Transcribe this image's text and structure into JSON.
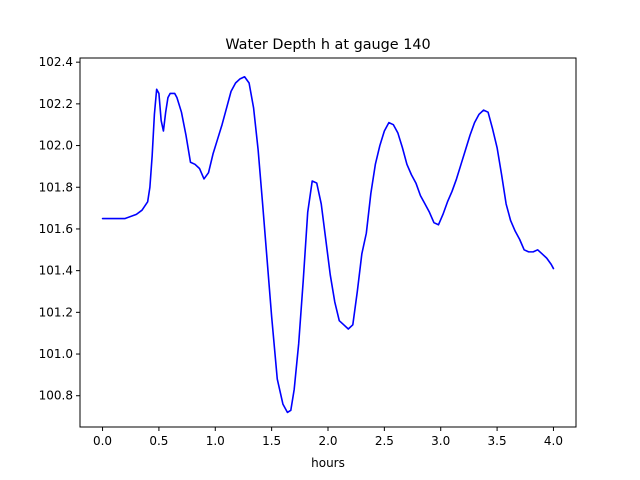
{
  "chart_data": {
    "type": "line",
    "title": "Water Depth h at gauge 140",
    "xlabel": "hours",
    "ylabel": "",
    "xlim": [
      -0.2,
      4.2
    ],
    "ylim": [
      100.65,
      102.42
    ],
    "xticks": [
      0.0,
      0.5,
      1.0,
      1.5,
      2.0,
      2.5,
      3.0,
      3.5,
      4.0
    ],
    "xtick_labels": [
      "0.0",
      "0.5",
      "1.0",
      "1.5",
      "2.0",
      "2.5",
      "3.0",
      "3.5",
      "4.0"
    ],
    "yticks": [
      100.8,
      101.0,
      101.2,
      101.4,
      101.6,
      101.8,
      102.0,
      102.2,
      102.4
    ],
    "ytick_labels": [
      "100.8",
      "101.0",
      "101.2",
      "101.4",
      "101.6",
      "101.8",
      "102.0",
      "102.2",
      "102.4"
    ],
    "grid": false,
    "series": [
      {
        "color": "#0000ff",
        "x": [
          0.0,
          0.1,
          0.2,
          0.3,
          0.35,
          0.4,
          0.42,
          0.44,
          0.46,
          0.48,
          0.5,
          0.52,
          0.54,
          0.56,
          0.58,
          0.6,
          0.62,
          0.64,
          0.66,
          0.7,
          0.74,
          0.78,
          0.82,
          0.86,
          0.9,
          0.94,
          0.98,
          1.02,
          1.06,
          1.1,
          1.14,
          1.18,
          1.22,
          1.26,
          1.3,
          1.34,
          1.38,
          1.42,
          1.46,
          1.5,
          1.55,
          1.6,
          1.64,
          1.67,
          1.7,
          1.74,
          1.78,
          1.82,
          1.86,
          1.9,
          1.94,
          1.98,
          2.02,
          2.06,
          2.1,
          2.14,
          2.18,
          2.22,
          2.26,
          2.3,
          2.34,
          2.38,
          2.42,
          2.46,
          2.5,
          2.54,
          2.58,
          2.62,
          2.66,
          2.7,
          2.74,
          2.78,
          2.82,
          2.86,
          2.9,
          2.94,
          2.98,
          3.02,
          3.06,
          3.1,
          3.14,
          3.18,
          3.22,
          3.26,
          3.3,
          3.34,
          3.38,
          3.42,
          3.46,
          3.5,
          3.54,
          3.58,
          3.62,
          3.66,
          3.7,
          3.74,
          3.78,
          3.82,
          3.86,
          3.9,
          3.94,
          3.98,
          4.0
        ],
        "y": [
          101.65,
          101.65,
          101.65,
          101.67,
          101.69,
          101.73,
          101.8,
          101.95,
          102.15,
          102.27,
          102.25,
          102.12,
          102.07,
          102.16,
          102.23,
          102.25,
          102.25,
          102.25,
          102.23,
          102.16,
          102.05,
          101.92,
          101.91,
          101.89,
          101.84,
          101.87,
          101.96,
          102.03,
          102.1,
          102.18,
          102.26,
          102.3,
          102.32,
          102.33,
          102.3,
          102.18,
          101.98,
          101.72,
          101.45,
          101.18,
          100.88,
          100.76,
          100.72,
          100.73,
          100.83,
          101.05,
          101.35,
          101.68,
          101.83,
          101.82,
          101.72,
          101.55,
          101.38,
          101.25,
          101.16,
          101.14,
          101.12,
          101.14,
          101.3,
          101.48,
          101.58,
          101.77,
          101.91,
          102.0,
          102.07,
          102.11,
          102.1,
          102.06,
          101.99,
          101.91,
          101.86,
          101.82,
          101.76,
          101.72,
          101.68,
          101.63,
          101.62,
          101.67,
          101.73,
          101.78,
          101.84,
          101.91,
          101.98,
          102.05,
          102.11,
          102.15,
          102.17,
          102.16,
          102.08,
          101.99,
          101.86,
          101.72,
          101.64,
          101.59,
          101.55,
          101.5,
          101.49,
          101.49,
          101.5,
          101.48,
          101.46,
          101.43,
          101.41
        ]
      }
    ]
  }
}
